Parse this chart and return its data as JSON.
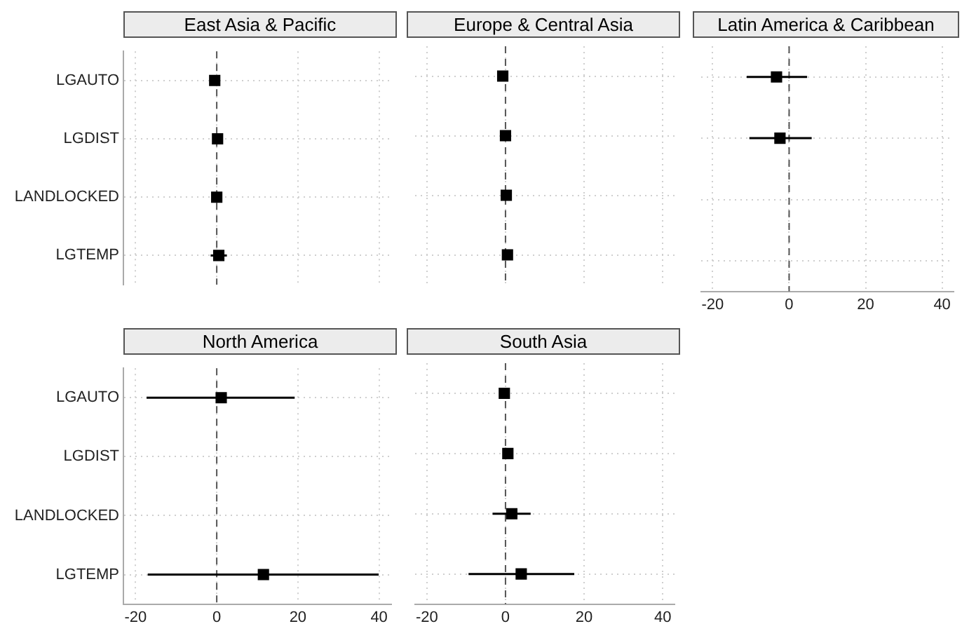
{
  "chart_data": [
    {
      "type": "scatter",
      "title": "East Asia & Pacific",
      "orientation": "horizontal",
      "categories": [
        "LGAUTO",
        "LGDIST",
        "LANDLOCKED",
        "LGTEMP"
      ],
      "series": [
        {
          "color": "#000000",
          "values": [
            -0.5,
            0.2,
            0,
            0.5
          ],
          "errors": [
            null,
            null,
            null,
            [
              -1.5,
              2.5
            ]
          ]
        }
      ],
      "xlim": [
        -23,
        43
      ],
      "xticks": [
        -20,
        0,
        20,
        40
      ],
      "grid": true,
      "marker": "square",
      "tick_labels": "y",
      "ref_lines": [
        {
          "axis": "x",
          "value": 0,
          "color": "#555555",
          "line_style": "dashed"
        }
      ]
    },
    {
      "type": "scatter",
      "title": "Europe & Central Asia",
      "orientation": "horizontal",
      "categories": [
        "LGAUTO",
        "LGDIST",
        "LANDLOCKED",
        "LGTEMP"
      ],
      "series": [
        {
          "color": "#000000",
          "values": [
            -0.7,
            0,
            0.2,
            0.5
          ],
          "errors": [
            null,
            null,
            null,
            null
          ]
        }
      ],
      "xlim": [
        -23,
        43
      ],
      "xticks": [
        -20,
        0,
        20,
        40
      ],
      "grid": true,
      "marker": "square",
      "tick_labels": false,
      "ref_lines": [
        {
          "axis": "x",
          "value": 0,
          "color": "#555555",
          "line_style": "dashed"
        }
      ]
    },
    {
      "type": "scatter",
      "title": "Latin America & Caribbean",
      "orientation": "horizontal",
      "categories": [
        "LGAUTO",
        "LGDIST",
        "LANDLOCKED",
        "LGTEMP"
      ],
      "series": [
        {
          "color": "#000000",
          "values": [
            -3.3,
            -2.4,
            null,
            null
          ],
          "errors": [
            [
              -11.1,
              4.7
            ],
            [
              -10.4,
              5.9
            ],
            null,
            null
          ]
        }
      ],
      "xlim": [
        -23,
        43
      ],
      "xticks": [
        -20,
        0,
        20,
        40
      ],
      "grid": true,
      "marker": "square",
      "tick_labels": "x",
      "ref_lines": [
        {
          "axis": "x",
          "value": 0,
          "color": "#555555",
          "line_style": "dashed"
        }
      ]
    },
    {
      "type": "scatter",
      "title": "North America",
      "orientation": "horizontal",
      "categories": [
        "LGAUTO",
        "LGDIST",
        "LANDLOCKED",
        "LGTEMP"
      ],
      "series": [
        {
          "color": "#000000",
          "values": [
            1.1,
            null,
            null,
            11.5
          ],
          "errors": [
            [
              -17.3,
              19.2
            ],
            null,
            null,
            [
              -17,
              39.9
            ]
          ]
        }
      ],
      "xlim": [
        -23,
        43
      ],
      "xticks": [
        -20,
        0,
        20,
        40
      ],
      "grid": true,
      "marker": "square",
      "ref_lines": [
        {
          "axis": "x",
          "value": 0,
          "color": "#555555",
          "line_style": "dashed"
        }
      ]
    },
    {
      "type": "scatter",
      "title": "South Asia",
      "orientation": "horizontal",
      "categories": [
        "LGAUTO",
        "LGDIST",
        "LANDLOCKED",
        "LGTEMP"
      ],
      "series": [
        {
          "color": "#000000",
          "values": [
            -0.3,
            0.6,
            1.6,
            4.0
          ],
          "errors": [
            null,
            null,
            [
              -3.3,
              6.4
            ],
            [
              -9.4,
              17.5
            ]
          ]
        }
      ],
      "xlim": [
        -23,
        43
      ],
      "xticks": [
        -20,
        0,
        20,
        40
      ],
      "grid": true,
      "marker": "square",
      "tick_labels": "x",
      "ref_lines": [
        {
          "axis": "x",
          "value": 0,
          "color": "#555555",
          "line_style": "dashed"
        }
      ]
    }
  ]
}
